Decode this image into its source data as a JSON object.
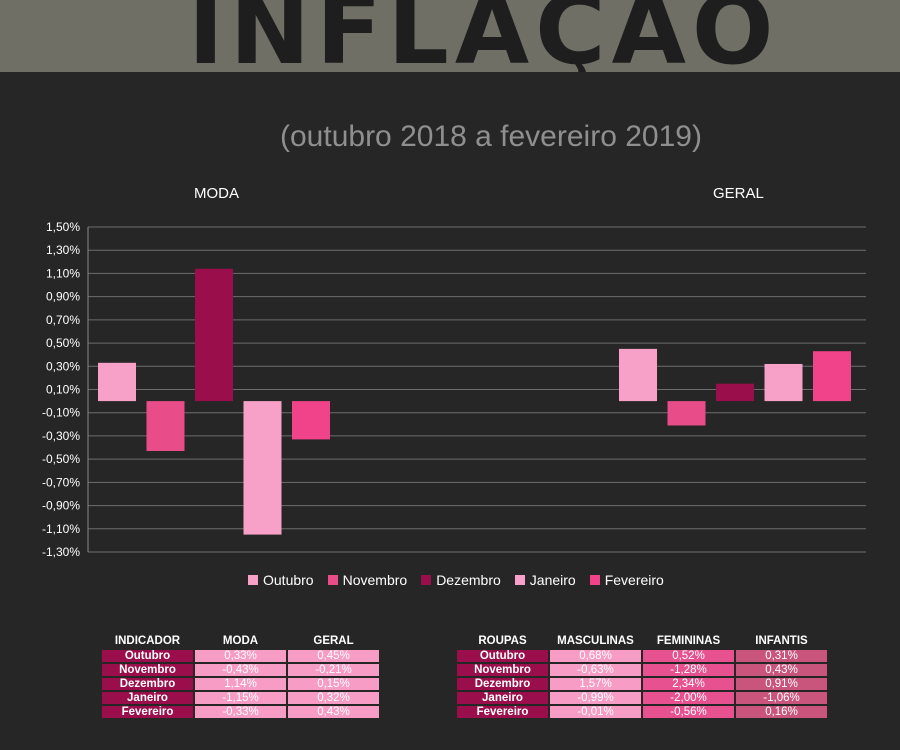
{
  "header": {
    "title": "INFLAÇÃO",
    "subtitle": "(outubro 2018 a fevereiro 2019)"
  },
  "colors": {
    "Outubro": "#f7a1c8",
    "Novembro": "#e84c89",
    "Dezembro": "#9a0f4b",
    "Janeiro": "#f7a1c8",
    "Fevereiro": "#f0438a"
  },
  "chart_data": {
    "type": "bar",
    "categories": [
      "MODA",
      "GERAL"
    ],
    "series": [
      {
        "name": "Outubro",
        "values": [
          0.33,
          0.45
        ]
      },
      {
        "name": "Novembro",
        "values": [
          -0.43,
          -0.21
        ]
      },
      {
        "name": "Dezembro",
        "values": [
          1.14,
          0.15
        ]
      },
      {
        "name": "Janeiro",
        "values": [
          -1.15,
          0.32
        ]
      },
      {
        "name": "Fevereiro",
        "values": [
          -0.33,
          0.43
        ]
      }
    ],
    "yticks": [
      "1,50%",
      "1,30%",
      "1,10%",
      "0,90%",
      "0,70%",
      "0,50%",
      "0,30%",
      "0,10%",
      "-0,10%",
      "-0,30%",
      "-0,50%",
      "-0,70%",
      "-0,90%",
      "-1,10%",
      "-1,30%"
    ],
    "ylim": [
      -1.3,
      1.5
    ],
    "grid": true,
    "legend_position": "bottom"
  },
  "tables": {
    "indicador": {
      "headers": [
        "INDICADOR",
        "MODA",
        "GERAL"
      ],
      "rows": [
        [
          "Outubro",
          "0,33%",
          "0,45%"
        ],
        [
          "Novembro",
          "-0,43%",
          "-0,21%"
        ],
        [
          "Dezembro",
          "1,14%",
          "0,15%"
        ],
        [
          "Janeiro",
          "-1,15%",
          "0,32%"
        ],
        [
          "Fevereiro",
          "-0,33%",
          "0,43%"
        ]
      ]
    },
    "roupas": {
      "headers": [
        "ROUPAS",
        "MASCULINAS",
        "FEMININAS",
        "INFANTIS"
      ],
      "rows": [
        [
          "Outubro",
          "0,68%",
          "0,52%",
          "0,31%"
        ],
        [
          "Novembro",
          "-0,63%",
          "-1,28%",
          "0,43%"
        ],
        [
          "Dezembro",
          "1,57%",
          "2,34%",
          "0,91%"
        ],
        [
          "Janeiro",
          "-0,99%",
          "-2,00%",
          "-1,06%"
        ],
        [
          "Fevereiro",
          "-0,01%",
          "-0,56%",
          "0,16%"
        ]
      ]
    }
  }
}
